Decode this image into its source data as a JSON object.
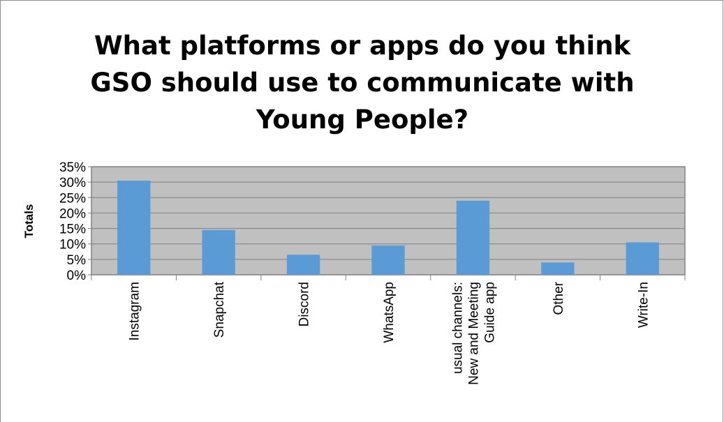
{
  "chart_data": {
    "type": "bar",
    "title_lines": [
      "What platforms or apps do you think",
      "GSO should use to communicate with",
      "Young People?"
    ],
    "xlabel": "",
    "ylabel": "Totals",
    "ylim": [
      0,
      0.35
    ],
    "yticks": [
      "0%",
      "5%",
      "10%",
      "15%",
      "20%",
      "25%",
      "30%",
      "35%"
    ],
    "categories": [
      [
        "Instagram"
      ],
      [
        "Snapchat"
      ],
      [
        "Discord"
      ],
      [
        "WhatsApp"
      ],
      [
        "usual channels:",
        "New and Meeting",
        "Guide app"
      ],
      [
        "Other"
      ],
      [
        "Write-In"
      ]
    ],
    "values": [
      0.305,
      0.145,
      0.065,
      0.095,
      0.24,
      0.04,
      0.105
    ],
    "grid": true,
    "legend": "none",
    "colors": {
      "bar": "#5b9bd5",
      "plot_bg": "#c0c0c0",
      "grid": "#808080",
      "axis": "#808080"
    }
  }
}
